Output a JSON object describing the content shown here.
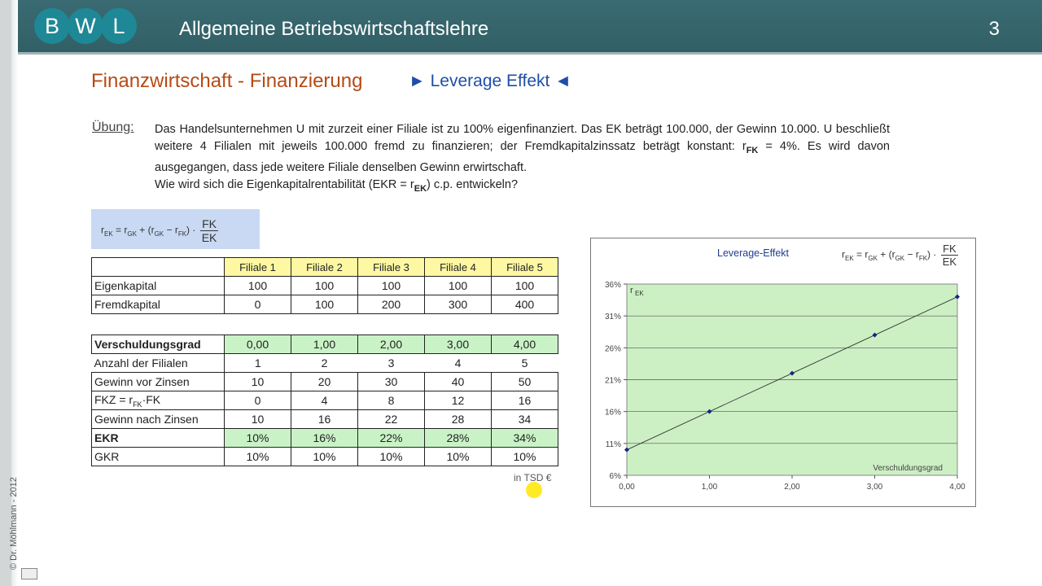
{
  "header": {
    "logo_letters": [
      "B",
      "W",
      "L"
    ],
    "app_title": "Allgemeine Betriebswirtschaftslehre",
    "page_number": "3"
  },
  "sidebar": {
    "copyright": "© Dr. Möhlmann - 2012"
  },
  "slide": {
    "title": "Finanzwirtschaft - Finanzierung",
    "subtitle": "► Leverage Effekt ◄",
    "exercise_label": "Übung:",
    "exercise_text_1": "Das Handelsunternehmen U mit zurzeit einer Filiale ist zu 100% eigenfinanziert. Das EK beträgt 100.000, der Gewinn 10.000. U beschließt weitere 4 Filialen mit jeweils 100.000 fremd zu finanzieren; der Fremdkapitalzinssatz beträgt konstant: r",
    "exercise_sub_fk": "FK",
    "exercise_text_2": " = 4%. Es wird davon ausgegangen, dass jede weitere Filiale denselben Gewinn erwirtschaft.",
    "question_1": "Wie wird sich die Eigenkapitalrentabilität (EKR = r",
    "question_sub": "EK",
    "question_2": ")  c.p.  entwickeln?",
    "formula_lhs": "r",
    "formula_sub_ek": "EK",
    "formula_mid": " = r",
    "formula_sub_gk": "GK",
    "formula_plus": " + (r",
    "formula_minus": " − r",
    "formula_sub_fk": "FK",
    "formula_close": ") ·",
    "formula_num": "FK",
    "formula_den": "EK",
    "unit_note": "in TSD €"
  },
  "table1": {
    "headers": [
      "Filiale 1",
      "Filiale 2",
      "Filiale 3",
      "Filiale 4",
      "Filiale 5"
    ],
    "rows": [
      {
        "label": "Eigenkapital",
        "values": [
          "100",
          "100",
          "100",
          "100",
          "100"
        ]
      },
      {
        "label": "Fremdkapital",
        "values": [
          "0",
          "100",
          "200",
          "300",
          "400"
        ]
      }
    ]
  },
  "table2": {
    "rows": [
      {
        "label": "Verschuldungsgrad",
        "values": [
          "0,00",
          "1,00",
          "2,00",
          "3,00",
          "4,00"
        ]
      },
      {
        "label": "Anzahl der Filialen",
        "values": [
          "1",
          "2",
          "3",
          "4",
          "5"
        ]
      },
      {
        "label": "Gewinn vor Zinsen",
        "values": [
          "10",
          "20",
          "30",
          "40",
          "50"
        ]
      },
      {
        "label": "FKZ = r",
        "label_sub": "FK",
        "label_tail": "·FK",
        "values": [
          "0",
          "4",
          "8",
          "12",
          "16"
        ]
      },
      {
        "label": "Gewinn nach Zinsen",
        "values": [
          "10",
          "16",
          "22",
          "28",
          "34"
        ]
      },
      {
        "label": "EKR",
        "values": [
          "10%",
          "16%",
          "22%",
          "28%",
          "34%"
        ]
      },
      {
        "label": "GKR",
        "values": [
          "10%",
          "10%",
          "10%",
          "10%",
          "10%"
        ]
      }
    ]
  },
  "colors": {
    "header_bg": "#3a6b72",
    "logo_circle": "#1e8896",
    "title": "#b64a14",
    "subtitle": "#1f4ea8",
    "yellow_header": "#fff8a3",
    "green_row": "#c9f3c6",
    "plot_bg": "#ccf0c4"
  },
  "chart_data": {
    "type": "line",
    "title": "Leverage-Effekt",
    "xlabel": "Verschuldungsgrad",
    "ylabel": "r",
    "ylabel_sub": "EK",
    "x": [
      0,
      1,
      2,
      3,
      4
    ],
    "x_ticks": [
      "0,00",
      "1,00",
      "2,00",
      "3,00",
      "4,00"
    ],
    "series": [
      {
        "values": [
          10,
          16,
          22,
          28,
          34
        ]
      }
    ],
    "y_ticks": [
      "6%",
      "11%",
      "16%",
      "21%",
      "26%",
      "31%",
      "36%"
    ],
    "xlim": [
      0,
      4
    ],
    "ylim": [
      6,
      36
    ],
    "grid": true
  }
}
